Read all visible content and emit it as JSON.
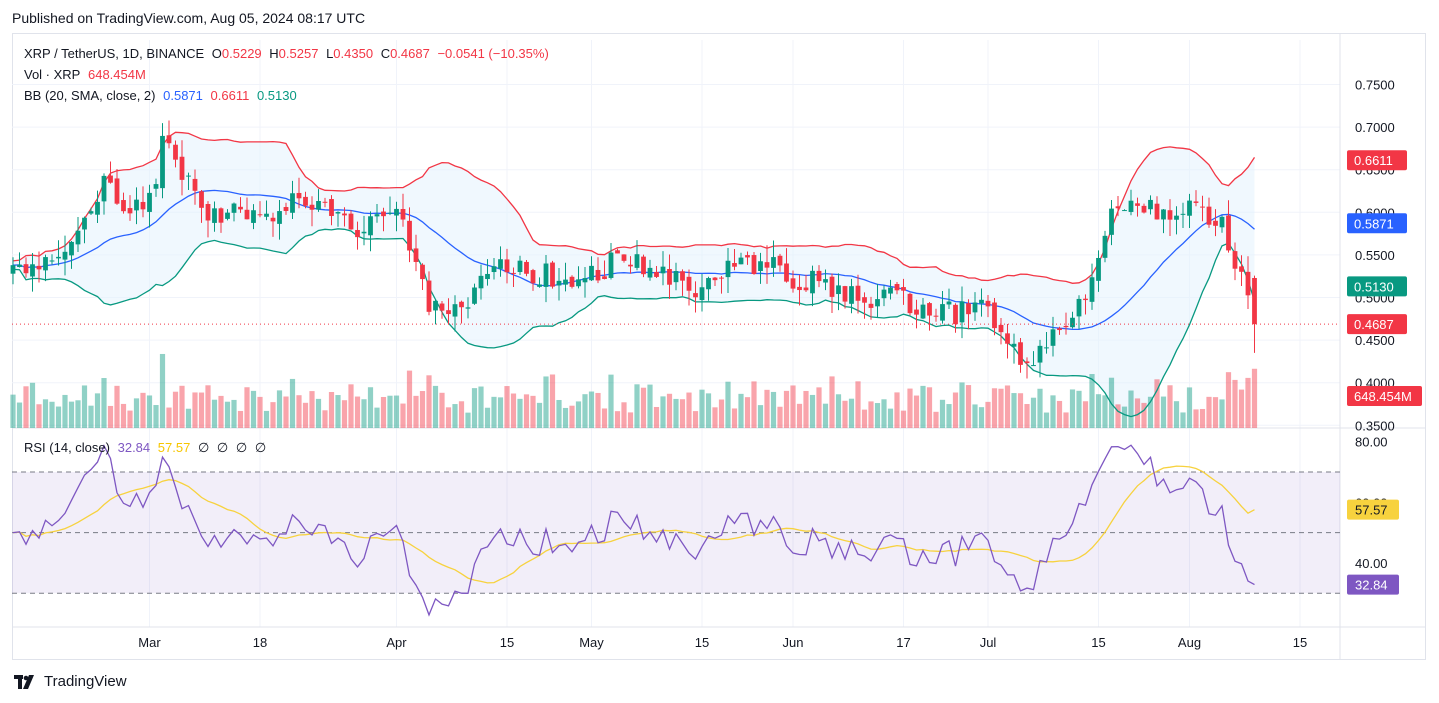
{
  "header": {
    "published": "Published on TradingView.com, Aug 05, 2024 08:17 UTC"
  },
  "legend": {
    "symbol": "XRP / TetherUS, 1D, BINANCE",
    "o_label": "O",
    "o": "0.5229",
    "h_label": "H",
    "h": "0.5257",
    "l_label": "L",
    "l": "0.4350",
    "c_label": "C",
    "c": "0.4687",
    "change": "−0.0541 (−10.35%)",
    "vol_label": "Vol · XRP",
    "vol": "648.454M",
    "bb_label": "BB (20, SMA, close, 2)",
    "bb_basis": "0.5871",
    "bb_upper": "0.6611",
    "bb_lower": "0.5130",
    "rsi_label": "RSI (14, close)",
    "rsi": "32.84",
    "rsi_ma": "57.57",
    "rsi_extra": [
      "∅",
      "∅",
      "∅",
      "∅"
    ]
  },
  "footer": {
    "brand": "TradingView"
  },
  "colors": {
    "up": "#089981",
    "down": "#f23645",
    "basis": "#2962ff",
    "upper": "#f23645",
    "lower": "#089981",
    "band_fill": "#e3f2fd",
    "rsi": "#7e57c2",
    "rsi_ma": "#f7d23e"
  },
  "chart_data": {
    "type": "candlestick",
    "price_axis_ticks": [
      "0.7500",
      "0.7000",
      "0.6500",
      "0.6000",
      "0.5500",
      "0.5000",
      "0.4500",
      "0.4000",
      "0.3500"
    ],
    "price_axis_values": [
      0.75,
      0.7,
      0.65,
      0.6,
      0.55,
      0.5,
      0.45,
      0.4,
      0.35
    ],
    "x_tick_labels": [
      "Mar",
      "18",
      "Apr",
      "15",
      "May",
      "15",
      "Jun",
      "17",
      "Jul",
      "15",
      "Aug",
      "15"
    ],
    "x_tick_days": [
      21,
      38,
      59,
      76,
      89,
      106,
      120,
      137,
      150,
      167,
      181,
      198
    ],
    "price_labels": [
      {
        "text": "0.6611",
        "value": 0.6611,
        "color": "#f23645"
      },
      {
        "text": "0.5871",
        "value": 0.5871,
        "color": "#2962ff"
      },
      {
        "text": "0.5130",
        "value": 0.513,
        "color": "#089981"
      },
      {
        "text": "0.4687",
        "value": 0.4687,
        "color": "#f23645"
      }
    ],
    "volume_label": {
      "text": "648.454M",
      "color": "#f23645"
    },
    "rsi_axis_ticks": [
      "80.00",
      "60.00",
      "40.00"
    ],
    "rsi_axis_values": [
      80,
      60,
      40
    ],
    "rsi_levels": [
      70,
      50,
      30
    ],
    "rsi_labels": [
      {
        "text": "57.57",
        "value": 57.57,
        "color": "#f7d23e"
      },
      {
        "text": "32.84",
        "value": 32.84,
        "color": "#7e57c2"
      }
    ],
    "anchors": [
      [
        0,
        0.53
      ],
      [
        6,
        0.55
      ],
      [
        11,
        0.59
      ],
      [
        14,
        0.64
      ],
      [
        18,
        0.6
      ],
      [
        22,
        0.62
      ],
      [
        23,
        0.68
      ],
      [
        25,
        0.66
      ],
      [
        30,
        0.6
      ],
      [
        35,
        0.6
      ],
      [
        39,
        0.6
      ],
      [
        44,
        0.62
      ],
      [
        49,
        0.6
      ],
      [
        53,
        0.58
      ],
      [
        57,
        0.6
      ],
      [
        60,
        0.6
      ],
      [
        62,
        0.53
      ],
      [
        64,
        0.49
      ],
      [
        69,
        0.49
      ],
      [
        73,
        0.53
      ],
      [
        76,
        0.54
      ],
      [
        80,
        0.53
      ],
      [
        86,
        0.52
      ],
      [
        90,
        0.53
      ],
      [
        94,
        0.55
      ],
      [
        97,
        0.53
      ],
      [
        101,
        0.52
      ],
      [
        104,
        0.51
      ],
      [
        108,
        0.52
      ],
      [
        112,
        0.54
      ],
      [
        116,
        0.54
      ],
      [
        120,
        0.52
      ],
      [
        124,
        0.52
      ],
      [
        128,
        0.5
      ],
      [
        134,
        0.5
      ],
      [
        140,
        0.49
      ],
      [
        145,
        0.48
      ],
      [
        150,
        0.49
      ],
      [
        153,
        0.45
      ],
      [
        156,
        0.42
      ],
      [
        160,
        0.45
      ],
      [
        163,
        0.48
      ],
      [
        166,
        0.52
      ],
      [
        169,
        0.6
      ],
      [
        172,
        0.6
      ],
      [
        176,
        0.6
      ],
      [
        180,
        0.6
      ],
      [
        184,
        0.6
      ],
      [
        186,
        0.58
      ],
      [
        189,
        0.53
      ],
      [
        191,
        0.4687
      ]
    ],
    "series_summary": "Daily XRP/USDT candles (~Feb 20 – Aug 5, 2024) with Bollinger Bands (20, 2), volume and RSI(14)."
  }
}
